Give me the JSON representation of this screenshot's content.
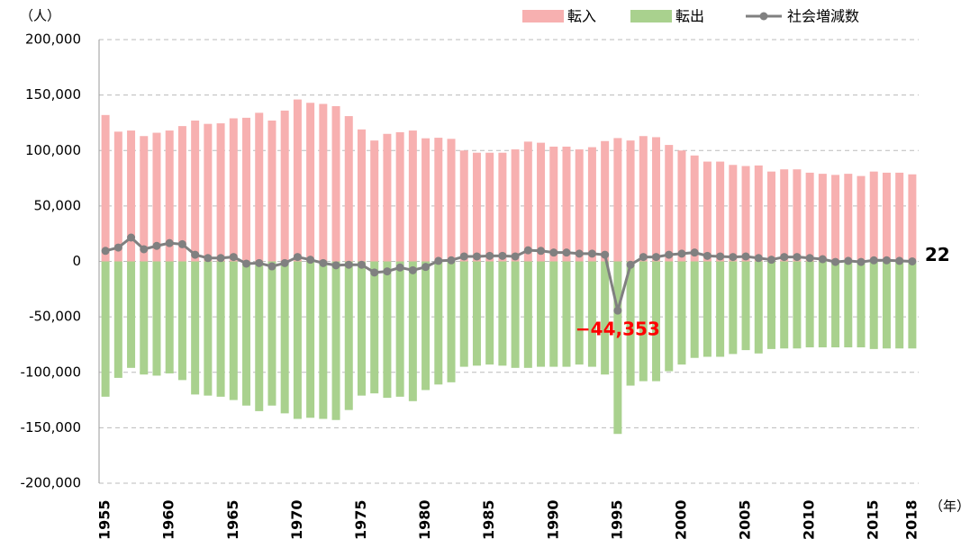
{
  "chart_data": {
    "type": "bar-line",
    "y_unit": "（人）",
    "x_unit": "（年）",
    "categories": [
      "1955",
      null,
      null,
      null,
      null,
      "1960",
      null,
      null,
      null,
      null,
      "1965",
      null,
      null,
      null,
      null,
      "1970",
      null,
      null,
      null,
      null,
      "1975",
      null,
      null,
      null,
      null,
      "1980",
      null,
      null,
      null,
      null,
      "1985",
      null,
      null,
      null,
      null,
      "1990",
      null,
      null,
      null,
      null,
      "1995",
      null,
      null,
      null,
      null,
      "2000",
      null,
      null,
      null,
      null,
      "2005",
      null,
      null,
      null,
      null,
      "2010",
      null,
      null,
      null,
      null,
      "2015",
      null,
      null,
      "2018"
    ],
    "series": [
      {
        "name": "転入",
        "type": "bar",
        "color": "#f7b0b0",
        "values": [
          132000,
          117000,
          118000,
          113000,
          116000,
          118000,
          122000,
          127000,
          124000,
          124500,
          129000,
          129500,
          134000,
          127000,
          136000,
          146000,
          143000,
          142000,
          140000,
          131000,
          119000,
          109000,
          115000,
          116500,
          118000,
          111000,
          111500,
          110500,
          100000,
          98000,
          98000,
          98000,
          101000,
          108000,
          107000,
          103500,
          103500,
          101000,
          103000,
          108500,
          111200,
          109000,
          113000,
          112000,
          105000,
          100000,
          95500,
          90000,
          90000,
          87000,
          86000,
          86500,
          81000,
          83000,
          83000,
          80000,
          79000,
          78000,
          79000,
          77000,
          81000,
          80000,
          80000,
          78500
        ]
      },
      {
        "name": "転出",
        "type": "bar",
        "color": "#a9d18e",
        "values": [
          -122000,
          -105000,
          -96000,
          -102000,
          -103000,
          -101000,
          -107000,
          -120000,
          -121000,
          -122000,
          -125000,
          -130000,
          -135000,
          -130000,
          -137000,
          -142000,
          -141000,
          -142000,
          -143000,
          -134000,
          -121000,
          -119000,
          -123000,
          -122000,
          -126000,
          -116000,
          -111000,
          -109000,
          -95000,
          -94000,
          -93000,
          -94000,
          -96000,
          -96000,
          -95000,
          -95000,
          -95000,
          -93000,
          -95000,
          -102000,
          -155553,
          -112000,
          -108000,
          -108000,
          -99000,
          -93000,
          -87000,
          -86000,
          -86000,
          -83500,
          -80000,
          -83000,
          -79000,
          -78500,
          -78500,
          -77500,
          -77500,
          -77500,
          -77500,
          -77500,
          -79000,
          -78500,
          -78500,
          -78500
        ]
      },
      {
        "name": "社会増減数",
        "type": "line",
        "color": "#808080",
        "values": [
          9500,
          12500,
          21500,
          11000,
          14000,
          16500,
          15500,
          6000,
          3000,
          3000,
          4000,
          -2000,
          -1500,
          -4500,
          -1500,
          4000,
          1500,
          -1500,
          -3500,
          -3000,
          -3000,
          -10000,
          -9000,
          -5500,
          -8000,
          -5000,
          500,
          1000,
          4500,
          4500,
          5000,
          5000,
          4500,
          10000,
          9500,
          8000,
          8000,
          7000,
          7000,
          6000,
          -44353,
          -3000,
          4000,
          4000,
          6000,
          7000,
          8000,
          5000,
          4500,
          4000,
          4500,
          3000,
          1500,
          4000,
          4000,
          3000,
          2000,
          -500,
          500,
          -500,
          1000,
          1000,
          500,
          22
        ],
        "value_labels": [
          null,
          null,
          null,
          null,
          null,
          null,
          null,
          null,
          null,
          null,
          null,
          null,
          null,
          null,
          null,
          null,
          null,
          null,
          null,
          null,
          null,
          null,
          null,
          null,
          null,
          null,
          null,
          null,
          null,
          null,
          null,
          null,
          null,
          null,
          null,
          null,
          null,
          null,
          null,
          null,
          "−44,353",
          null,
          null,
          null,
          null,
          null,
          null,
          null,
          null,
          null,
          null,
          null,
          null,
          null,
          null,
          null,
          null,
          null,
          null,
          null,
          null,
          null,
          null,
          "22"
        ],
        "label_colors": [
          "#ff0000",
          "#000000"
        ]
      }
    ],
    "ylim": [
      -200000,
      200000
    ],
    "yticks": [
      {
        "value": -200000,
        "label": "-200,000"
      },
      {
        "value": -150000,
        "label": "-150,000"
      },
      {
        "value": -100000,
        "label": "-100,000"
      },
      {
        "value": -50000,
        "label": "-50,000"
      },
      0,
      {
        "value": 50000,
        "label": "50,000"
      },
      {
        "value": 100000,
        "label": "100,000"
      },
      {
        "value": 150000,
        "label": "150,000"
      },
      {
        "value": 200000,
        "label": "200,000"
      }
    ],
    "grid": true,
    "legend": "top-right"
  }
}
